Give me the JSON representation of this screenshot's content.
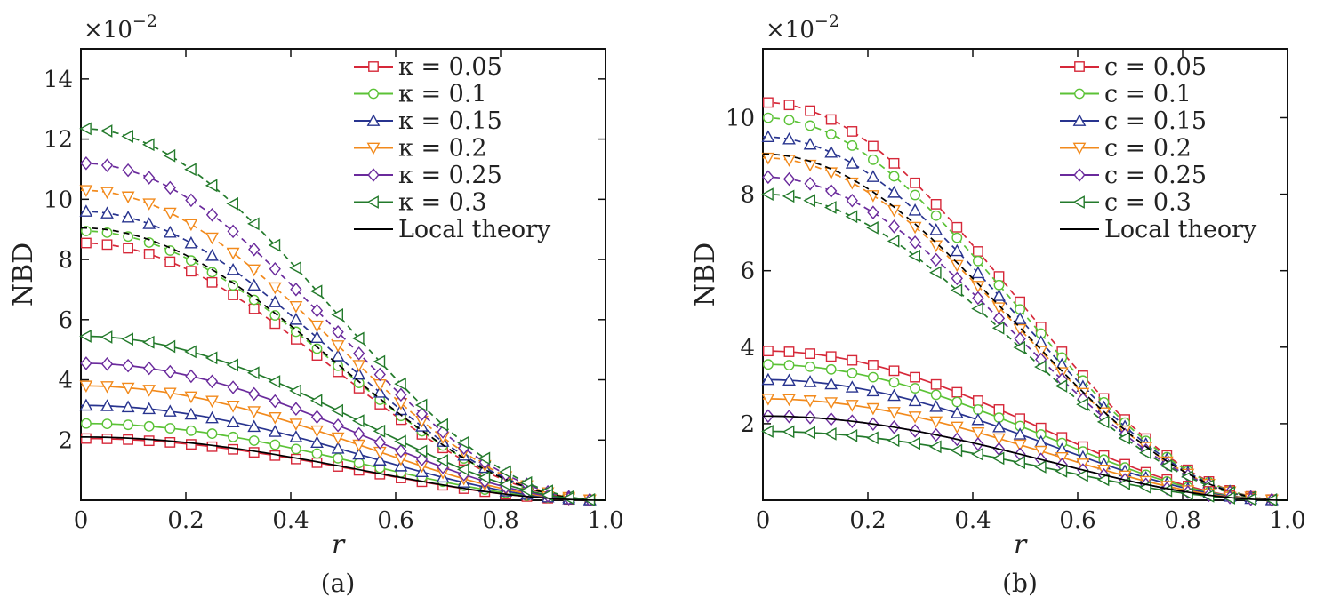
{
  "chart_data": [
    {
      "type": "line",
      "panel_label": "(a)",
      "xlabel": "r",
      "ylabel": "NBD",
      "y_multiplier": "×10",
      "y_multiplier_exp": "−2",
      "xlim": [
        0,
        1.0
      ],
      "ylim": [
        0,
        15
      ],
      "x_ticks": [
        "0",
        "0.2",
        "0.4",
        "0.6",
        "0.8",
        "1.0"
      ],
      "y_ticks": [
        "2",
        "4",
        "6",
        "8",
        "10",
        "12",
        "14"
      ],
      "grid": false,
      "legend_position": "top-right",
      "legend": [
        {
          "label": "κ = 0.05",
          "color": "#d62839",
          "marker": "square"
        },
        {
          "label": "κ = 0.1",
          "color": "#5bc236",
          "marker": "circle"
        },
        {
          "label": "κ = 0.15",
          "color": "#28348f",
          "marker": "triangle-up"
        },
        {
          "label": "κ = 0.2",
          "color": "#f28a1c",
          "marker": "triangle-down"
        },
        {
          "label": "κ = 0.25",
          "color": "#6a2a9c",
          "marker": "diamond"
        },
        {
          "label": "κ = 0.3",
          "color": "#237a2b",
          "marker": "triangle-left"
        },
        {
          "label": "Local theory",
          "color": "#000000",
          "marker": "none"
        }
      ],
      "curves": [
        {
          "group": "dashed",
          "color": "#d62839",
          "marker": "square",
          "y0": 8.55
        },
        {
          "group": "dashed",
          "color": "#5bc236",
          "marker": "circle",
          "y0": 8.95
        },
        {
          "group": "dashed",
          "color": "#28348f",
          "marker": "triangle-up",
          "y0": 9.6
        },
        {
          "group": "dashed",
          "color": "#f28a1c",
          "marker": "triangle-down",
          "y0": 10.3
        },
        {
          "group": "dashed",
          "color": "#6a2a9c",
          "marker": "diamond",
          "y0": 11.2
        },
        {
          "group": "dashed",
          "color": "#237a2b",
          "marker": "triangle-left",
          "y0": 12.35
        },
        {
          "group": "dashed",
          "color": "#000000",
          "marker": "none",
          "y0": 9.05
        },
        {
          "group": "solid",
          "color": "#d62839",
          "marker": "square",
          "y0": 2.05
        },
        {
          "group": "solid",
          "color": "#5bc236",
          "marker": "circle",
          "y0": 2.55
        },
        {
          "group": "solid",
          "color": "#28348f",
          "marker": "triangle-up",
          "y0": 3.15
        },
        {
          "group": "solid",
          "color": "#f28a1c",
          "marker": "triangle-down",
          "y0": 3.8
        },
        {
          "group": "solid",
          "color": "#6a2a9c",
          "marker": "diamond",
          "y0": 4.55
        },
        {
          "group": "solid",
          "color": "#237a2b",
          "marker": "triangle-left",
          "y0": 5.45
        },
        {
          "group": "solid",
          "color": "#000000",
          "marker": "none",
          "y0": 2.1
        }
      ]
    },
    {
      "type": "line",
      "panel_label": "(b)",
      "xlabel": "r",
      "ylabel": "NBD",
      "y_multiplier": "×10",
      "y_multiplier_exp": "−2",
      "xlim": [
        0,
        1.0
      ],
      "ylim": [
        0,
        11.8
      ],
      "x_ticks": [
        "0",
        "0.2",
        "0.4",
        "0.6",
        "0.8",
        "1.0"
      ],
      "y_ticks": [
        "2",
        "4",
        "6",
        "8",
        "10"
      ],
      "grid": false,
      "legend_position": "top-right",
      "legend": [
        {
          "label": "c = 0.05",
          "color": "#d62839",
          "marker": "square"
        },
        {
          "label": "c = 0.1",
          "color": "#5bc236",
          "marker": "circle"
        },
        {
          "label": "c = 0.15",
          "color": "#28348f",
          "marker": "triangle-up"
        },
        {
          "label": "c = 0.2",
          "color": "#f28a1c",
          "marker": "triangle-down"
        },
        {
          "label": "c = 0.25",
          "color": "#6a2a9c",
          "marker": "diamond"
        },
        {
          "label": "c = 0.3",
          "color": "#237a2b",
          "marker": "triangle-left"
        },
        {
          "label": "Local theory",
          "color": "#000000",
          "marker": "none"
        }
      ],
      "curves": [
        {
          "group": "dashed",
          "color": "#d62839",
          "marker": "square",
          "y0": 10.4
        },
        {
          "group": "dashed",
          "color": "#5bc236",
          "marker": "circle",
          "y0": 10.0
        },
        {
          "group": "dashed",
          "color": "#28348f",
          "marker": "triangle-up",
          "y0": 9.5
        },
        {
          "group": "dashed",
          "color": "#f28a1c",
          "marker": "triangle-down",
          "y0": 8.95
        },
        {
          "group": "dashed",
          "color": "#6a2a9c",
          "marker": "diamond",
          "y0": 8.45
        },
        {
          "group": "dashed",
          "color": "#237a2b",
          "marker": "triangle-left",
          "y0": 8.0
        },
        {
          "group": "dashed",
          "color": "#000000",
          "marker": "none",
          "y0": 9.05
        },
        {
          "group": "solid",
          "color": "#d62839",
          "marker": "square",
          "y0": 3.9
        },
        {
          "group": "solid",
          "color": "#5bc236",
          "marker": "circle",
          "y0": 3.55
        },
        {
          "group": "solid",
          "color": "#28348f",
          "marker": "triangle-up",
          "y0": 3.15
        },
        {
          "group": "solid",
          "color": "#f28a1c",
          "marker": "triangle-down",
          "y0": 2.65
        },
        {
          "group": "solid",
          "color": "#6a2a9c",
          "marker": "diamond",
          "y0": 2.2
        },
        {
          "group": "solid",
          "color": "#237a2b",
          "marker": "triangle-left",
          "y0": 1.8
        },
        {
          "group": "solid",
          "color": "#000000",
          "marker": "none",
          "y0": 2.2
        }
      ]
    }
  ]
}
